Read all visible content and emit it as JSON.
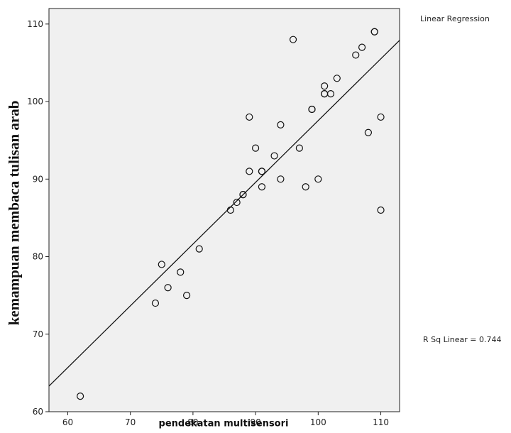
{
  "chart_data": {
    "type": "scatter",
    "title": "",
    "xlabel": "pendekatan multisensori",
    "ylabel": "kemampuan membaca tulisan arab",
    "xlim": [
      57,
      113
    ],
    "ylim": [
      60,
      112
    ],
    "x_ticks": [
      60,
      70,
      80,
      90,
      100,
      110
    ],
    "y_ticks": [
      60,
      70,
      80,
      90,
      100,
      110
    ],
    "x_tick_labels": [
      "60",
      "70",
      "80",
      "90",
      "100",
      "110"
    ],
    "y_tick_labels": [
      "60",
      "70",
      "80",
      "90",
      "100",
      "110"
    ],
    "grid": false,
    "plot_background": "#f0f0f0",
    "marker": "open-circle",
    "points": [
      {
        "x": 62,
        "y": 62
      },
      {
        "x": 74,
        "y": 74
      },
      {
        "x": 75,
        "y": 79
      },
      {
        "x": 76,
        "y": 76
      },
      {
        "x": 78,
        "y": 78
      },
      {
        "x": 79,
        "y": 75
      },
      {
        "x": 81,
        "y": 81
      },
      {
        "x": 86,
        "y": 86
      },
      {
        "x": 87,
        "y": 87
      },
      {
        "x": 88,
        "y": 88
      },
      {
        "x": 88,
        "y": 88
      },
      {
        "x": 89,
        "y": 91
      },
      {
        "x": 89,
        "y": 98
      },
      {
        "x": 90,
        "y": 94
      },
      {
        "x": 91,
        "y": 91
      },
      {
        "x": 91,
        "y": 91
      },
      {
        "x": 91,
        "y": 89
      },
      {
        "x": 93,
        "y": 93
      },
      {
        "x": 94,
        "y": 97
      },
      {
        "x": 94,
        "y": 90
      },
      {
        "x": 96,
        "y": 108
      },
      {
        "x": 97,
        "y": 94
      },
      {
        "x": 98,
        "y": 89
      },
      {
        "x": 99,
        "y": 99
      },
      {
        "x": 99,
        "y": 99
      },
      {
        "x": 100,
        "y": 90
      },
      {
        "x": 101,
        "y": 101
      },
      {
        "x": 101,
        "y": 101
      },
      {
        "x": 101,
        "y": 102
      },
      {
        "x": 102,
        "y": 101
      },
      {
        "x": 103,
        "y": 103
      },
      {
        "x": 106,
        "y": 106
      },
      {
        "x": 107,
        "y": 107
      },
      {
        "x": 108,
        "y": 96
      },
      {
        "x": 109,
        "y": 109
      },
      {
        "x": 109,
        "y": 109
      },
      {
        "x": 110,
        "y": 98
      },
      {
        "x": 110,
        "y": 86
      }
    ],
    "fit_line": {
      "label": "Linear Regression",
      "from": {
        "x": 57,
        "y": 63.3
      },
      "to": {
        "x": 113,
        "y": 107.9
      },
      "r_squared_text": "R Sq Linear = 0.744"
    }
  }
}
